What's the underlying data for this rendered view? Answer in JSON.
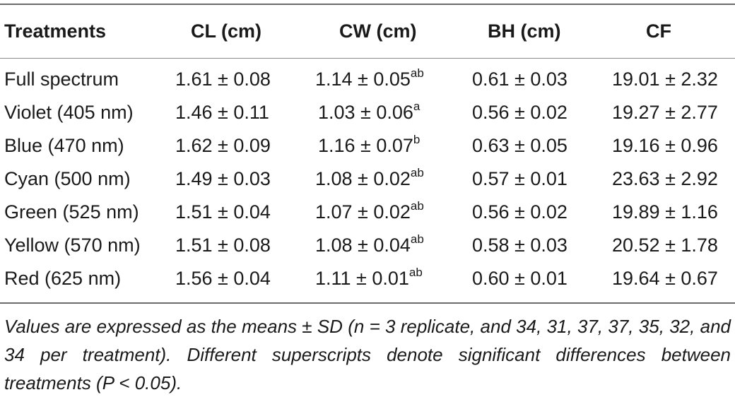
{
  "table": {
    "headers": {
      "treatments": "Treatments",
      "cl": "CL (cm)",
      "cw": "CW (cm)",
      "bh": "BH (cm)",
      "cf": "CF"
    },
    "rows": [
      {
        "treatment": "Full spectrum",
        "cl": "1.61 ± 0.08",
        "cw": "1.14 ± 0.05",
        "cw_sup": "ab",
        "bh": "0.61 ± 0.03",
        "cf": "19.01 ± 2.32"
      },
      {
        "treatment": "Violet (405 nm)",
        "cl": "1.46 ± 0.11",
        "cw": "1.03 ± 0.06",
        "cw_sup": "a",
        "bh": "0.56 ± 0.02",
        "cf": "19.27 ± 2.77"
      },
      {
        "treatment": "Blue (470 nm)",
        "cl": "1.62 ± 0.09",
        "cw": "1.16 ± 0.07",
        "cw_sup": "b",
        "bh": "0.63 ± 0.05",
        "cf": "19.16 ± 0.96"
      },
      {
        "treatment": "Cyan (500 nm)",
        "cl": "1.49 ± 0.03",
        "cw": "1.08 ± 0.02",
        "cw_sup": "ab",
        "bh": "0.57 ± 0.01",
        "cf": "23.63 ± 2.92"
      },
      {
        "treatment": "Green (525 nm)",
        "cl": "1.51 ± 0.04",
        "cw": "1.07 ± 0.02",
        "cw_sup": "ab",
        "bh": "0.56 ± 0.02",
        "cf": "19.89 ± 1.16"
      },
      {
        "treatment": "Yellow (570 nm)",
        "cl": "1.51 ± 0.08",
        "cw": "1.08 ± 0.04",
        "cw_sup": "ab",
        "bh": "0.58 ± 0.03",
        "cf": "20.52 ± 1.78"
      },
      {
        "treatment": "Red (625 nm)",
        "cl": "1.56 ± 0.04",
        "cw": "1.11 ± 0.01",
        "cw_sup": "ab",
        "bh": "0.60 ± 0.01",
        "cf": "19.64 ± 0.67"
      }
    ],
    "footnote": "Values are expressed as the means ± SD (n = 3 replicate, and 34, 31, 37, 37, 35, 32, and 34 per treatment). Different superscripts denote significant differences between treatments (P < 0.05)."
  },
  "colors": {
    "text": "#1a1a1a",
    "rule": "#6b6b6b",
    "background": "#ffffff"
  }
}
